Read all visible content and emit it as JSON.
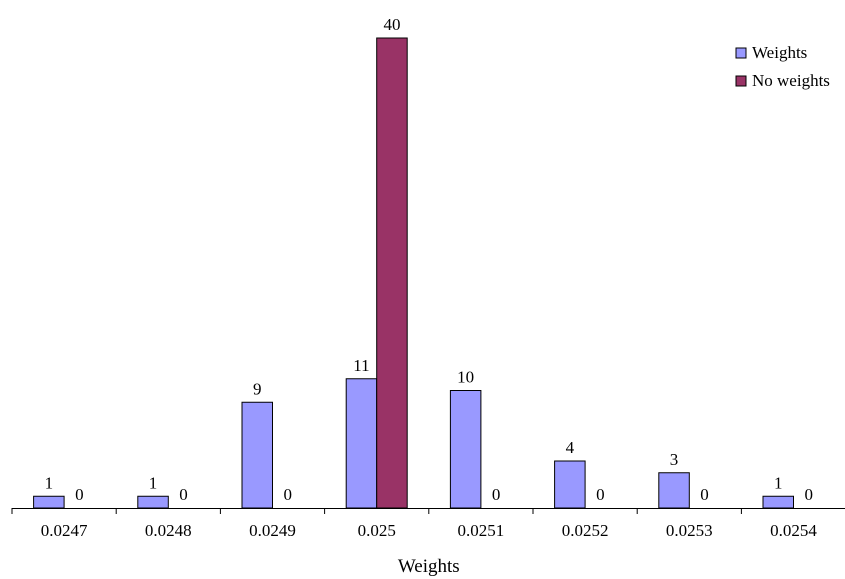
{
  "chart_data": {
    "type": "bar",
    "categories": [
      "0.0247",
      "0.0248",
      "0.0249",
      "0.025",
      "0.0251",
      "0.0252",
      "0.0253",
      "0.0254"
    ],
    "series": [
      {
        "name": "Weights",
        "values": [
          1,
          1,
          9,
          11,
          10,
          4,
          3,
          1
        ],
        "color": "#9999ff"
      },
      {
        "name": "No weights",
        "values": [
          0,
          0,
          0,
          40,
          0,
          0,
          0,
          0
        ],
        "color": "#993366"
      }
    ],
    "xlabel": "Weights",
    "ylabel": "",
    "ylim": [
      0,
      40
    ],
    "grid": false,
    "legend_position": "top-right",
    "data_labels": true
  }
}
